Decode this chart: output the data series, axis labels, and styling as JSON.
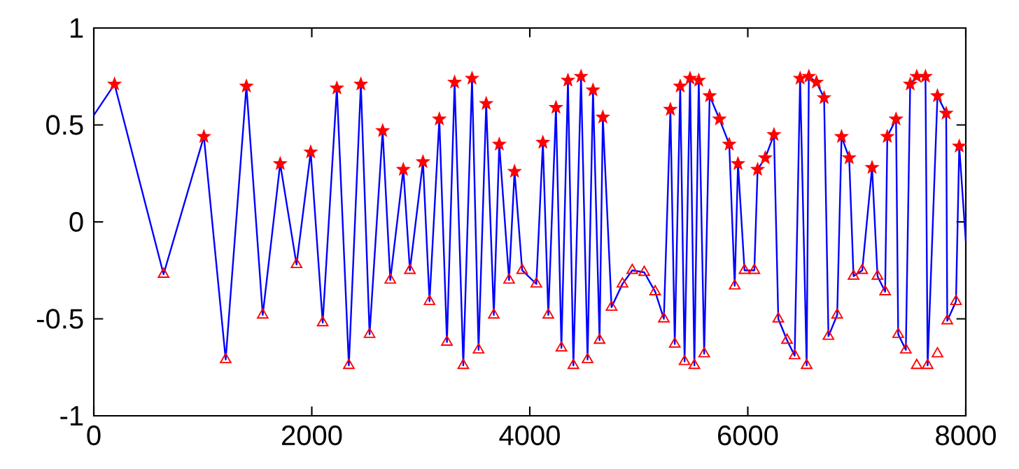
{
  "chart_data": {
    "type": "line",
    "xlim": [
      0,
      8000
    ],
    "ylim": [
      -1,
      1
    ],
    "xticks": [
      0,
      2000,
      4000,
      6000,
      8000
    ],
    "yticks": [
      -1,
      -0.5,
      0,
      0.5,
      1
    ],
    "grid": false,
    "series": [
      {
        "color": "#0000ff",
        "marker": "none",
        "line_style": "solid",
        "x": [
          0,
          190,
          640,
          1010,
          1210,
          1400,
          1550,
          1710,
          1860,
          1990,
          2100,
          2230,
          2340,
          2450,
          2530,
          2650,
          2720,
          2840,
          2900,
          3020,
          3080,
          3170,
          3240,
          3310,
          3390,
          3470,
          3530,
          3600,
          3670,
          3720,
          3810,
          3860,
          3930,
          4060,
          4120,
          4170,
          4240,
          4290,
          4350,
          4400,
          4470,
          4530,
          4580,
          4640,
          4670,
          4750,
          4850,
          4940,
          5050,
          5150,
          5230,
          5290,
          5330,
          5380,
          5420,
          5470,
          5510,
          5550,
          5600,
          5650,
          5740,
          5830,
          5880,
          5910,
          5970,
          6060,
          6090,
          6160,
          6240,
          6280,
          6360,
          6430,
          6480,
          6540,
          6560,
          6630,
          6700,
          6740,
          6820,
          6860,
          6930,
          6970,
          7050,
          7140,
          7190,
          7260,
          7280,
          7360,
          7380,
          7450,
          7490,
          7550,
          7630,
          7650,
          7740,
          7820,
          7830,
          7910,
          7940,
          8000
        ],
        "values": [
          0.55,
          0.71,
          -0.27,
          0.44,
          -0.71,
          0.7,
          -0.48,
          0.3,
          -0.22,
          0.36,
          -0.52,
          0.69,
          -0.74,
          0.71,
          -0.58,
          0.47,
          -0.3,
          0.27,
          -0.25,
          0.31,
          -0.41,
          0.53,
          -0.62,
          0.72,
          -0.74,
          0.74,
          -0.66,
          0.61,
          -0.48,
          0.4,
          -0.3,
          0.26,
          -0.25,
          -0.32,
          0.41,
          -0.48,
          0.59,
          -0.65,
          0.73,
          -0.74,
          0.75,
          -0.71,
          0.68,
          -0.61,
          0.54,
          -0.44,
          -0.32,
          -0.25,
          -0.26,
          -0.36,
          -0.5,
          0.58,
          -0.63,
          0.7,
          -0.72,
          0.74,
          -0.74,
          0.73,
          -0.68,
          0.65,
          0.53,
          0.4,
          -0.33,
          0.3,
          -0.25,
          -0.25,
          0.27,
          0.33,
          0.45,
          -0.5,
          -0.61,
          -0.69,
          0.74,
          -0.74,
          0.75,
          0.72,
          0.64,
          -0.59,
          -0.48,
          0.44,
          0.33,
          -0.28,
          -0.25,
          0.28,
          -0.28,
          -0.36,
          0.44,
          0.53,
          -0.58,
          -0.66,
          0.71,
          0.75,
          0.75,
          -0.74,
          0.65,
          0.56,
          -0.51,
          -0.41,
          0.39,
          -0.1
        ]
      },
      {
        "type": "scatter",
        "color": "#ff0000",
        "marker": "star",
        "x": [
          190,
          1010,
          1400,
          1710,
          1990,
          2230,
          2450,
          2650,
          2840,
          3020,
          3170,
          3310,
          3470,
          3600,
          3720,
          3860,
          4120,
          4240,
          4350,
          4470,
          4580,
          4670,
          5290,
          5380,
          5470,
          5550,
          5650,
          5740,
          5830,
          5910,
          6090,
          6160,
          6240,
          6480,
          6560,
          6630,
          6700,
          6860,
          6930,
          7140,
          7280,
          7360,
          7490,
          7550,
          7630,
          7740,
          7820,
          7940
        ],
        "values": [
          0.71,
          0.44,
          0.7,
          0.3,
          0.36,
          0.69,
          0.71,
          0.47,
          0.27,
          0.31,
          0.53,
          0.72,
          0.74,
          0.61,
          0.4,
          0.26,
          0.41,
          0.59,
          0.73,
          0.75,
          0.68,
          0.54,
          0.58,
          0.7,
          0.74,
          0.73,
          0.65,
          0.53,
          0.4,
          0.3,
          0.27,
          0.33,
          0.45,
          0.74,
          0.75,
          0.72,
          0.64,
          0.44,
          0.33,
          0.28,
          0.44,
          0.53,
          0.71,
          0.75,
          0.75,
          0.65,
          0.56,
          0.39
        ]
      },
      {
        "type": "scatter",
        "color": "#ff0000",
        "marker": "triangle",
        "x": [
          640,
          1210,
          1550,
          1860,
          2100,
          2340,
          2530,
          2720,
          2900,
          3080,
          3240,
          3390,
          3530,
          3670,
          3810,
          3930,
          4060,
          4170,
          4290,
          4400,
          4530,
          4640,
          4750,
          4850,
          4940,
          5050,
          5150,
          5230,
          5330,
          5420,
          5510,
          5600,
          5880,
          5970,
          6060,
          6280,
          6360,
          6430,
          6540,
          6740,
          6820,
          6970,
          7050,
          7190,
          7260,
          7380,
          7450,
          7550,
          7650,
          7740,
          7830,
          7910
        ],
        "values": [
          -0.27,
          -0.71,
          -0.48,
          -0.22,
          -0.52,
          -0.74,
          -0.58,
          -0.3,
          -0.25,
          -0.41,
          -0.62,
          -0.74,
          -0.66,
          -0.48,
          -0.3,
          -0.25,
          -0.32,
          -0.48,
          -0.65,
          -0.74,
          -0.71,
          -0.61,
          -0.44,
          -0.32,
          -0.25,
          -0.26,
          -0.36,
          -0.5,
          -0.63,
          -0.72,
          -0.74,
          -0.68,
          -0.33,
          -0.25,
          -0.25,
          -0.5,
          -0.61,
          -0.69,
          -0.74,
          -0.59,
          -0.48,
          -0.28,
          -0.25,
          -0.28,
          -0.36,
          -0.58,
          -0.66,
          -0.74,
          -0.74,
          -0.68,
          -0.51,
          -0.41
        ]
      }
    ]
  }
}
